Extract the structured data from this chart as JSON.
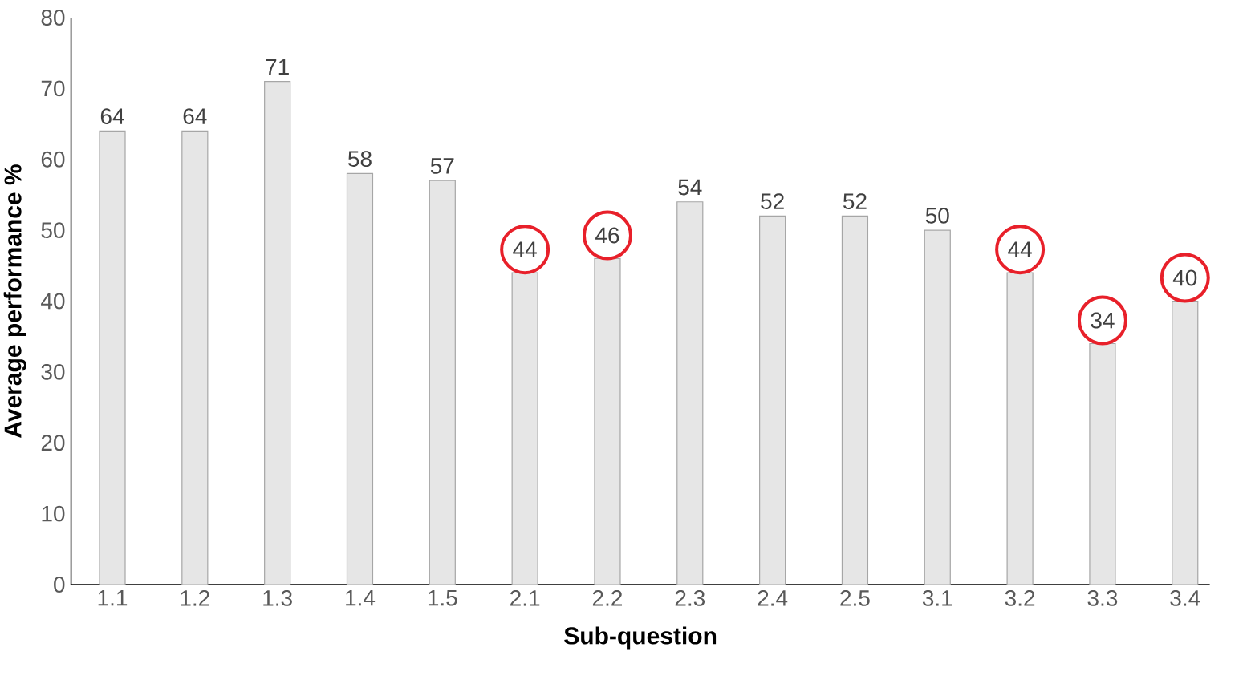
{
  "chart_data": {
    "type": "bar",
    "xlabel": "Sub-question",
    "ylabel": "Average performance %",
    "categories": [
      "1.1",
      "1.2",
      "1.3",
      "1.4",
      "1.5",
      "2.1",
      "2.2",
      "2.3",
      "2.4",
      "2.5",
      "3.1",
      "3.2",
      "3.3",
      "3.4"
    ],
    "values": [
      64,
      64,
      71,
      58,
      57,
      44,
      46,
      54,
      52,
      52,
      50,
      44,
      34,
      40
    ],
    "value_labels": [
      "64",
      "64",
      "71",
      "58",
      "57",
      null,
      null,
      "54",
      "52",
      "52",
      "50",
      null,
      null,
      null
    ],
    "annotations": [
      {
        "text": "44",
        "x": "2.1",
        "y": 44
      },
      {
        "text": "46",
        "x": "2.2",
        "y": 46
      },
      {
        "text": "44",
        "x": "3.2",
        "y": 44
      },
      {
        "text": "34",
        "x": "3.3",
        "y": 34
      },
      {
        "text": "40",
        "x": "3.4",
        "y": 40
      }
    ],
    "color": "#e6e6e6",
    "ylim": [
      0,
      80
    ],
    "yticks": [
      0,
      10,
      20,
      30,
      40,
      50,
      60,
      70,
      80
    ],
    "grid": false
  }
}
